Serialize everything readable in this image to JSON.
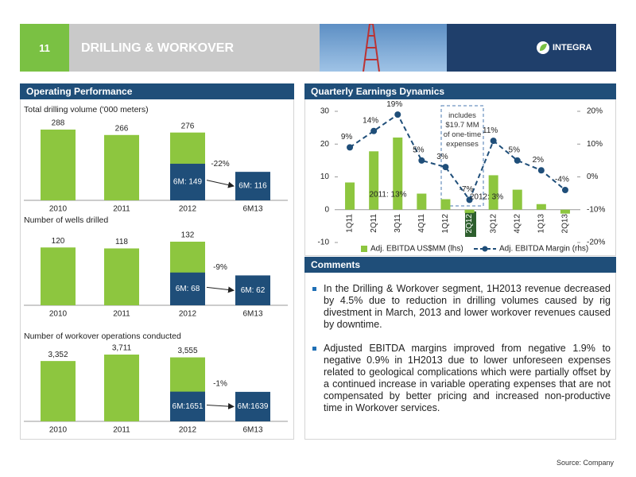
{
  "header": {
    "page_number": "11",
    "title": "DRILLING & WORKOVER",
    "logo": "INTEGRA"
  },
  "left_panel": {
    "title": "Operating Performance"
  },
  "comments": {
    "title": "Comments",
    "bullets": [
      "In the Drilling & Workover segment, 1H2013 revenue decreased by 4.5% due to reduction in drilling volumes caused by rig divestment in March, 2013 and lower workover revenues caused by downtime.",
      "Adjusted EBITDA margins improved from negative 1.9% to negative 0.9% in 1H2013 due to lower unforeseen expenses related to geological complications which were partially offset by a continued increase in variable operating expenses that are not compensated by better pricing and increased non-productive time in Workover services."
    ]
  },
  "source": "Source: Company",
  "chart_data": [
    {
      "type": "bar",
      "title": "Total drilling volume ('000 meters)",
      "categories": [
        "2010",
        "2011",
        "2012",
        "6M13"
      ],
      "series": [
        {
          "color": "#8dc63f",
          "values": [
            288,
            266,
            276,
            null
          ]
        },
        {
          "color": "#1f4e79",
          "values": [
            null,
            null,
            149,
            116
          ],
          "value_labels": [
            null,
            null,
            "6M: 149",
            "6M: 116"
          ]
        }
      ],
      "annotation": "-22%"
    },
    {
      "type": "bar",
      "title": "Number of wells drilled",
      "categories": [
        "2010",
        "2011",
        "2012",
        "6M13"
      ],
      "series": [
        {
          "color": "#8dc63f",
          "values": [
            120,
            118,
            132,
            null
          ]
        },
        {
          "color": "#1f4e79",
          "values": [
            null,
            null,
            68,
            62
          ],
          "value_labels": [
            null,
            null,
            "6M: 68",
            "6M: 62"
          ]
        }
      ],
      "annotation": "-9%"
    },
    {
      "type": "bar",
      "title": "Number of workover operations conducted",
      "categories": [
        "2010",
        "2011",
        "2012",
        "6M13"
      ],
      "series": [
        {
          "color": "#8dc63f",
          "values": [
            3352,
            3711,
            3555,
            null
          ],
          "value_labels": [
            "3,352",
            "3,711",
            "3,555",
            null
          ]
        },
        {
          "color": "#1f4e79",
          "values": [
            null,
            null,
            1651,
            1639
          ],
          "value_labels": [
            null,
            null,
            "6M:1651",
            "6M:1639"
          ]
        }
      ],
      "annotation": "-1%"
    },
    {
      "type": "combo",
      "title": "Quarterly Earnings Dynamics",
      "categories": [
        "1Q11",
        "2Q11",
        "3Q11",
        "4Q11",
        "1Q12",
        "2Q12",
        "3Q12",
        "4Q12",
        "1Q13",
        "2Q13"
      ],
      "series": [
        {
          "name": "Adj. EBITDA US$MM (lhs)",
          "type": "bar",
          "color": "#8dc63f",
          "values": [
            8.3,
            17.8,
            22,
            4.9,
            3.2,
            -1,
            10.5,
            6.1,
            1.7,
            -1.2
          ]
        },
        {
          "name": "Adj. EBITDA Margin (rhs)",
          "type": "line",
          "axis": "y2",
          "color": "#1f4e79",
          "values": [
            9,
            14,
            19,
            5,
            3,
            -7,
            11,
            5,
            2,
            -4
          ],
          "value_labels": [
            "9%",
            "14%",
            "19%",
            "5%",
            "3%",
            "-7%",
            "11%",
            "5%",
            "2%",
            "-4%"
          ]
        }
      ],
      "ylim": [
        -10,
        30
      ],
      "yticks": [
        -10,
        0,
        10,
        20,
        30
      ],
      "y2lim": [
        -20,
        20
      ],
      "y2ticks": [
        {
          "value": -20,
          "label": "-20%"
        },
        {
          "value": -10,
          "label": "-10%"
        },
        {
          "value": 0,
          "label": "0%"
        },
        {
          "value": 10,
          "label": "10%"
        },
        {
          "value": 20,
          "label": "20%"
        }
      ],
      "annotations": [
        "includes $19.7 MM of one-time expenses",
        "2011: 13%",
        "2012: 3%"
      ]
    }
  ]
}
